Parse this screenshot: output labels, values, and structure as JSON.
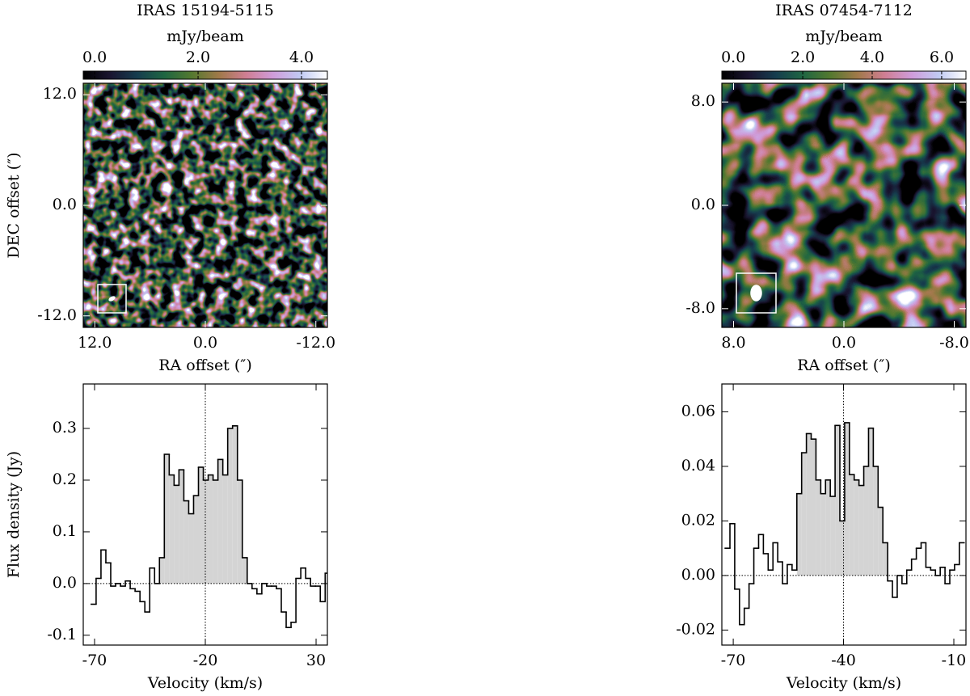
{
  "chart_data": [
    {
      "type": "image",
      "title": "IRAS 15194-5115",
      "colorbar_label": "mJy/beam",
      "clim": [
        -0.22,
        4.5
      ],
      "cticks": [
        {
          "value": 0,
          "label": "0.0"
        },
        {
          "value": 2,
          "label": "2.0"
        },
        {
          "value": 4,
          "label": "4.0"
        }
      ],
      "colormap": [
        "#000000",
        "#1a1530",
        "#163d4e",
        "#1f6642",
        "#54792f",
        "#a07949",
        "#d07e93",
        "#cf9cda",
        "#c1caf3",
        "#ffffff"
      ],
      "xlabel": "RA offset (″)",
      "ylabel": "DEC offset (″)",
      "xlim": [
        13.25,
        -13.25
      ],
      "ylim": [
        -13.25,
        13.25
      ],
      "xticks": [
        {
          "value": 12,
          "label": "12.0"
        },
        {
          "value": 0,
          "label": "0.0"
        },
        {
          "value": -12,
          "label": "-12.0"
        }
      ],
      "yticks": [
        {
          "value": 12,
          "label": "12.0"
        },
        {
          "value": 0,
          "label": "0.0"
        },
        {
          "value": -12,
          "label": "-12.0"
        }
      ],
      "beam": {
        "major": 0.8,
        "minor": 0.45,
        "angle": 60
      }
    },
    {
      "type": "image",
      "title": "IRAS 07454-7112",
      "colorbar_label": "mJy/beam",
      "clim": [
        -0.33,
        6.7
      ],
      "cticks": [
        {
          "value": 0,
          "label": "0.0"
        },
        {
          "value": 2,
          "label": "2.0"
        },
        {
          "value": 4,
          "label": "4.0"
        },
        {
          "value": 6,
          "label": "6.0"
        }
      ],
      "colormap": [
        "#000000",
        "#1a1530",
        "#163d4e",
        "#1f6642",
        "#54792f",
        "#a07949",
        "#d07e93",
        "#cf9cda",
        "#c1caf3",
        "#ffffff"
      ],
      "xlabel": "RA offset (″)",
      "xlim": [
        8.85,
        -8.85
      ],
      "ylim": [
        -9.45,
        9.45
      ],
      "xticks": [
        {
          "value": 8,
          "label": "8.0"
        },
        {
          "value": 0,
          "label": "0.0"
        },
        {
          "value": -8,
          "label": "-8.0"
        }
      ],
      "yticks": [
        {
          "value": 8,
          "label": "8.0"
        },
        {
          "value": 0,
          "label": "0.0"
        },
        {
          "value": -8,
          "label": "-8.0"
        }
      ],
      "beam": {
        "major": 1.2,
        "minor": 0.85,
        "angle": 0
      }
    },
    {
      "type": "histogram",
      "xlabel": "Velocity (km/s)",
      "ylabel": "Flux density (Jy)",
      "bins": [
        -71.5,
        -69.3,
        -67.1,
        -64.9,
        -62.7,
        -60.5,
        -58.3,
        -56.1,
        -53.9,
        -51.7,
        -49.5,
        -47.3,
        -45.1,
        -42.9,
        -40.7,
        -38.5,
        -36.3,
        -34.1,
        -31.9,
        -29.7,
        -27.5,
        -25.3,
        -23.1,
        -20.9,
        -18.7,
        -16.5,
        -14.3,
        -12.1,
        -9.9,
        -7.7,
        -5.5,
        -3.3,
        -1.1,
        1.1,
        3.3,
        5.5,
        7.7,
        9.9,
        12.1,
        14.3,
        16.5,
        18.7,
        20.9,
        23.1,
        25.3,
        27.5,
        29.7,
        31.9,
        34.1,
        36.3
      ],
      "values": [
        -0.04,
        0.01,
        0.065,
        0.04,
        -0.005,
        0,
        -0.005,
        0.005,
        -0.01,
        -0.015,
        -0.035,
        -0.055,
        0.03,
        0,
        0.05,
        0.25,
        0.21,
        0.19,
        0.22,
        0.16,
        0.135,
        0.17,
        0.225,
        0.2,
        0.21,
        0.2,
        0.24,
        0.21,
        0.3,
        0.305,
        0.2,
        0.05,
        0,
        -0.01,
        -0.02,
        0,
        -0.005,
        -0.005,
        -0.01,
        -0.055,
        -0.085,
        -0.075,
        0.01,
        0.03,
        0.01,
        -0.005,
        -0.005,
        -0.035,
        0.02
      ],
      "color": "#000000",
      "shade_color": "#d4d4d4",
      "shade": [
        -42.9,
        1.1
      ],
      "vline": -20,
      "hline": 0,
      "xlim": [
        -75.1,
        35.1
      ],
      "ylim": [
        -0.119,
        0.386
      ],
      "xticks": [
        -70,
        -20,
        30
      ],
      "yticks": [
        0.3,
        0.2,
        0.1,
        {
          "value": 0,
          "label": "0.0"
        },
        -0.1
      ]
    },
    {
      "type": "histogram",
      "xlabel": "Velocity (km/s)",
      "bins": [
        -72.2,
        -70.9,
        -69.6,
        -68.3,
        -67.0,
        -65.7,
        -64.4,
        -63.1,
        -61.8,
        -60.5,
        -59.2,
        -57.9,
        -56.6,
        -55.3,
        -54.0,
        -52.7,
        -51.4,
        -50.1,
        -48.8,
        -47.5,
        -46.2,
        -44.9,
        -43.6,
        -42.3,
        -41.0,
        -39.7,
        -38.4,
        -37.1,
        -35.8,
        -34.5,
        -33.2,
        -31.9,
        -30.6,
        -29.3,
        -28.0,
        -26.7,
        -25.4,
        -24.1,
        -22.8,
        -21.5,
        -20.2,
        -18.9,
        -17.6,
        -16.3,
        -15.0,
        -13.7,
        -12.4,
        -11.1,
        -9.8,
        -8.5,
        -7.2
      ],
      "values": [
        0.01,
        0.019,
        -0.005,
        -0.018,
        -0.012,
        -0.003,
        0.01,
        0.015,
        0.008,
        0.002,
        0.012,
        0.005,
        -0.003,
        0.004,
        0.002,
        0.03,
        0.045,
        0.052,
        0.05,
        0.035,
        0.03,
        0.035,
        0.029,
        0.055,
        0.02,
        0.056,
        0.037,
        0.035,
        0.033,
        0.04,
        0.054,
        0.04,
        0.025,
        0.012,
        -0.002,
        -0.008,
        0,
        -0.003,
        0.002,
        0.006,
        0.01,
        0.012,
        0.003,
        0.002,
        0,
        0.003,
        -0.003,
        0.002,
        0.004,
        0.012
      ],
      "color": "#000000",
      "shade_color": "#d4d4d4",
      "shade": [
        -52.7,
        -28.0
      ],
      "vline": -40,
      "hline": 0,
      "xlim": [
        -73.1,
        -6.7
      ],
      "ylim": [
        -0.0255,
        0.0702
      ],
      "xticks": [
        -70,
        -40,
        -10
      ],
      "yticks": [
        0.06,
        0.04,
        0.02,
        {
          "value": 0,
          "label": "0.00"
        },
        -0.02
      ]
    }
  ]
}
